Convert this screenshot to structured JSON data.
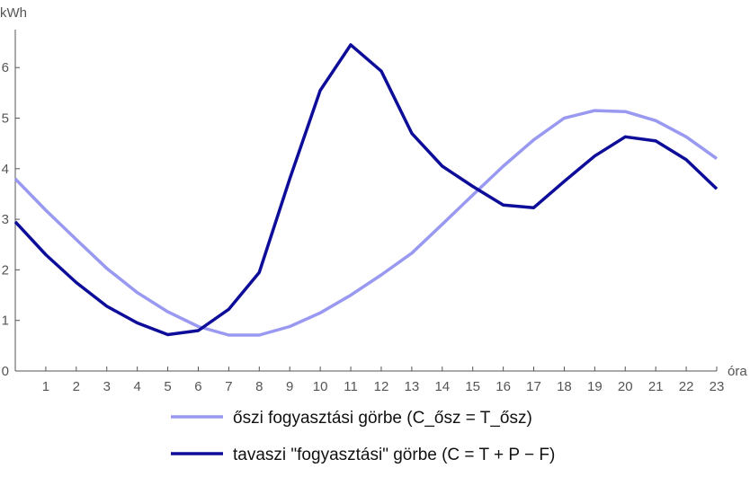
{
  "chart_data": {
    "type": "line",
    "x": [
      0,
      1,
      2,
      3,
      4,
      5,
      6,
      7,
      8,
      9,
      10,
      11,
      12,
      13,
      14,
      15,
      16,
      17,
      18,
      19,
      20,
      21,
      22,
      23
    ],
    "xlabel": "óra",
    "ylabel": "kWh",
    "xlim": [
      0,
      23
    ],
    "ylim": [
      0,
      6.75
    ],
    "xticks": [
      1,
      2,
      3,
      4,
      5,
      6,
      7,
      8,
      9,
      10,
      11,
      12,
      13,
      14,
      15,
      16,
      17,
      18,
      19,
      20,
      21,
      22,
      23
    ],
    "yticks": [
      0,
      1,
      2,
      3,
      4,
      5,
      6
    ],
    "grid": false,
    "legend_position": "bottom",
    "series": [
      {
        "name": "őszi fogyasztási görbe (C_ősz = T_ősz)",
        "color": "#9999f2",
        "values": [
          3.8,
          3.18,
          2.6,
          2.03,
          1.55,
          1.17,
          0.88,
          0.71,
          0.71,
          0.88,
          1.15,
          1.5,
          1.9,
          2.33,
          2.9,
          3.48,
          4.05,
          4.57,
          5.0,
          5.15,
          5.13,
          4.95,
          4.63,
          4.2
        ]
      },
      {
        "name": "tavaszi \"fogyasztási\" görbe (C = T + P − F)",
        "color": "#0d0d99",
        "values": [
          2.95,
          2.3,
          1.75,
          1.28,
          0.95,
          0.72,
          0.8,
          1.22,
          1.95,
          3.8,
          5.55,
          6.45,
          5.93,
          4.7,
          4.05,
          3.65,
          3.28,
          3.23,
          3.75,
          4.25,
          4.63,
          4.55,
          4.18,
          3.6
        ]
      }
    ]
  }
}
